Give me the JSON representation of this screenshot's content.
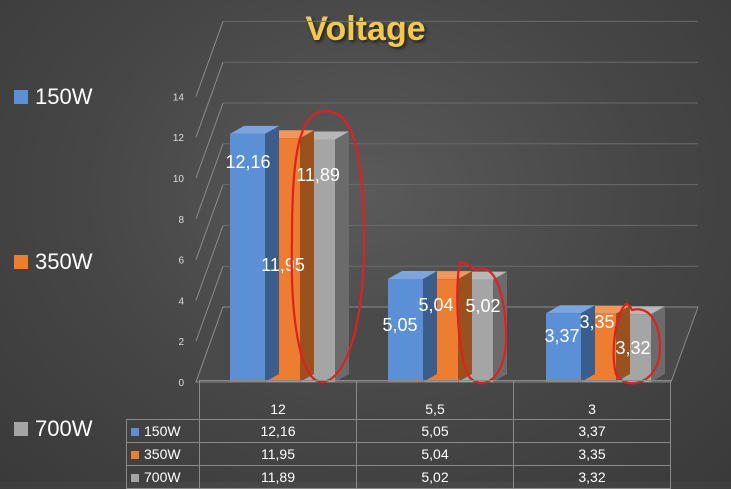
{
  "chart_data": {
    "type": "bar",
    "title": "Voltage",
    "categories": [
      "12",
      "5,5",
      "3"
    ],
    "series": [
      {
        "name": "150W",
        "values": [
          12.16,
          5.05,
          3.37
        ],
        "labels": [
          "12,16",
          "5,05",
          "3,37"
        ],
        "color": "#5b8fd6"
      },
      {
        "name": "350W",
        "values": [
          11.95,
          5.04,
          3.35
        ],
        "labels": [
          "11,95",
          "5,04",
          "3,35"
        ],
        "color": "#ed7d31"
      },
      {
        "name": "700W",
        "values": [
          11.89,
          5.02,
          3.32
        ],
        "labels": [
          "11,89",
          "5,02",
          "3,32"
        ],
        "color": "#a5a5a5"
      }
    ],
    "yticks": [
      "0",
      "2",
      "4",
      "6",
      "8",
      "10",
      "12",
      "14"
    ],
    "ylim": [
      0,
      14
    ],
    "grid": true,
    "legend": "left",
    "annotations": "hand-drawn red ellipses around the 700W bars"
  }
}
